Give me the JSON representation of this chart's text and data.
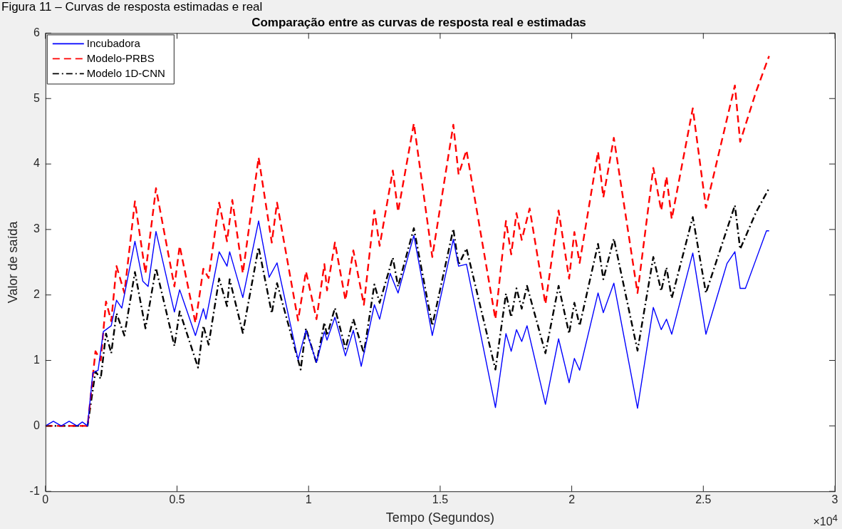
{
  "chart_data": {
    "type": "line",
    "title": "Comparação entre as curvas de resposta real e estimadas",
    "xlabel": "Tempo (Segundos)",
    "ylabel": "Valor de saída",
    "annotations": [
      "Figura 11 – Curvas de resposta estimadas e real",
      "×10$^{4}$"
    ],
    "xlim": [
      0,
      3
    ],
    "xticks": [
      0,
      0.5,
      1,
      1.5,
      2,
      2.5,
      3
    ],
    "ylim": [
      -1,
      6
    ],
    "yticks": [
      -1,
      0,
      1,
      2,
      3,
      4,
      5,
      6
    ],
    "grid": false,
    "legend": "top left",
    "series": [
      {
        "name": "Incubadora",
        "color": "#0000ff",
        "line_style": "solid",
        "x": [
          0,
          0.03,
          0.06,
          0.09,
          0.12,
          0.14,
          0.16,
          0.18,
          0.2,
          0.22,
          0.25,
          0.27,
          0.29,
          0.34,
          0.37,
          0.39,
          0.42,
          0.49,
          0.51,
          0.57,
          0.6,
          0.61,
          0.66,
          0.69,
          0.7,
          0.75,
          0.81,
          0.85,
          0.88,
          0.96,
          0.99,
          1.03,
          1.06,
          1.07,
          1.1,
          1.14,
          1.17,
          1.2,
          1.25,
          1.27,
          1.31,
          1.34,
          1.4,
          1.47,
          1.55,
          1.57,
          1.6,
          1.71,
          1.75,
          1.77,
          1.79,
          1.81,
          1.83,
          1.9,
          1.95,
          1.99,
          2.01,
          2.03,
          2.1,
          2.12,
          2.16,
          2.25,
          2.31,
          2.34,
          2.36,
          2.38,
          2.46,
          2.51,
          2.59,
          2.62,
          2.64,
          2.66,
          2.7,
          2.74,
          2.75
        ],
        "values": [
          0,
          0.07,
          0,
          0.07,
          0,
          0.06,
          0,
          0.81,
          0.85,
          1.44,
          1.53,
          1.92,
          1.8,
          2.82,
          2.21,
          2.13,
          2.97,
          1.74,
          2.08,
          1.38,
          1.79,
          1.63,
          2.66,
          2.44,
          2.66,
          1.96,
          3.13,
          2.27,
          2.49,
          1.01,
          1.46,
          0.97,
          1.44,
          1.31,
          1.66,
          1.07,
          1.46,
          0.91,
          1.85,
          1.63,
          2.33,
          2.03,
          2.91,
          1.38,
          2.85,
          2.44,
          2.47,
          0.28,
          1.41,
          1.14,
          1.47,
          1.29,
          1.53,
          0.33,
          1.33,
          0.66,
          1.03,
          0.85,
          2.03,
          1.73,
          2.18,
          0.27,
          1.81,
          1.47,
          1.63,
          1.4,
          2.64,
          1.4,
          2.48,
          2.66,
          2.1,
          2.1,
          2.54,
          2.98,
          2.98
        ]
      },
      {
        "name": "Modelo-PRBS",
        "color": "#ff0000",
        "line_style": "dashed",
        "x": [
          0,
          0.16,
          0.19,
          0.21,
          0.23,
          0.25,
          0.27,
          0.3,
          0.34,
          0.38,
          0.42,
          0.49,
          0.51,
          0.57,
          0.6,
          0.62,
          0.66,
          0.69,
          0.71,
          0.75,
          0.81,
          0.86,
          0.88,
          0.96,
          0.99,
          1.03,
          1.06,
          1.07,
          1.1,
          1.14,
          1.17,
          1.21,
          1.25,
          1.27,
          1.32,
          1.34,
          1.4,
          1.47,
          1.55,
          1.57,
          1.6,
          1.71,
          1.75,
          1.77,
          1.79,
          1.81,
          1.84,
          1.9,
          1.95,
          1.99,
          2.01,
          2.03,
          2.1,
          2.12,
          2.16,
          2.25,
          2.31,
          2.34,
          2.36,
          2.38,
          2.46,
          2.51,
          2.62,
          2.64,
          2.7,
          2.75
        ],
        "values": [
          0,
          0,
          1.14,
          1.0,
          1.9,
          1.6,
          2.44,
          2.03,
          3.43,
          2.33,
          3.63,
          2.13,
          2.75,
          1.57,
          2.4,
          2.26,
          3.41,
          2.82,
          3.45,
          2.33,
          4.1,
          2.8,
          3.41,
          1.61,
          2.36,
          1.63,
          2.47,
          2.07,
          2.8,
          1.92,
          2.68,
          1.85,
          3.29,
          2.75,
          3.9,
          3.27,
          4.62,
          2.58,
          4.6,
          3.84,
          4.21,
          1.63,
          3.13,
          2.62,
          3.25,
          2.84,
          3.32,
          1.86,
          3.29,
          2.25,
          2.96,
          2.49,
          4.19,
          3.49,
          4.4,
          2.03,
          3.94,
          3.29,
          3.81,
          3.16,
          4.85,
          3.33,
          5.2,
          4.34,
          5.1,
          5.65
        ]
      },
      {
        "name": "Modelo 1D-CNN",
        "color": "#000000",
        "line_style": "dashdot",
        "x": [
          0,
          0.16,
          0.19,
          0.21,
          0.23,
          0.25,
          0.27,
          0.3,
          0.34,
          0.38,
          0.42,
          0.49,
          0.51,
          0.58,
          0.6,
          0.62,
          0.66,
          0.69,
          0.7,
          0.75,
          0.81,
          0.86,
          0.88,
          0.97,
          0.99,
          1.03,
          1.06,
          1.07,
          1.1,
          1.14,
          1.17,
          1.21,
          1.25,
          1.27,
          1.32,
          1.34,
          1.4,
          1.47,
          1.55,
          1.57,
          1.6,
          1.71,
          1.75,
          1.77,
          1.79,
          1.81,
          1.83,
          1.9,
          1.95,
          1.99,
          2.01,
          2.03,
          2.1,
          2.12,
          2.16,
          2.25,
          2.31,
          2.34,
          2.36,
          2.38,
          2.46,
          2.51,
          2.62,
          2.64,
          2.7,
          2.75
        ],
        "values": [
          0,
          0,
          0.83,
          0.72,
          1.41,
          1.11,
          1.72,
          1.38,
          2.35,
          1.49,
          2.41,
          1.22,
          1.75,
          0.89,
          1.53,
          1.24,
          2.25,
          1.83,
          2.24,
          1.42,
          2.73,
          1.72,
          2.18,
          0.86,
          1.49,
          0.96,
          1.58,
          1.38,
          1.8,
          1.18,
          1.63,
          1.11,
          2.16,
          1.88,
          2.57,
          2.13,
          3.02,
          1.53,
          3.01,
          2.46,
          2.71,
          0.86,
          2.02,
          1.66,
          2.1,
          1.79,
          2.14,
          1.11,
          2.14,
          1.41,
          1.88,
          1.53,
          2.78,
          2.24,
          2.86,
          1.15,
          2.58,
          2.06,
          2.42,
          1.95,
          3.19,
          2.03,
          3.37,
          2.7,
          3.26,
          3.63
        ]
      }
    ]
  }
}
